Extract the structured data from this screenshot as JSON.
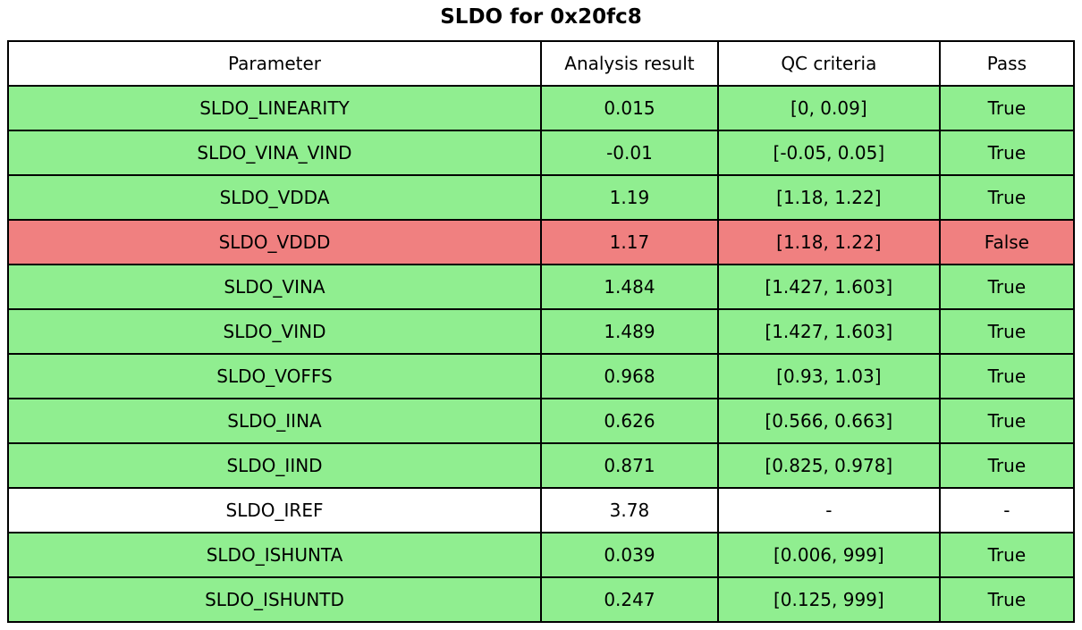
{
  "title": "SLDO for 0x20fc8",
  "colors": {
    "pass": "#90ee90",
    "fail": "#f08080",
    "none": "#ffffff",
    "border": "#000000",
    "text": "#000000"
  },
  "table": {
    "headers": [
      "Parameter",
      "Analysis result",
      "QC criteria",
      "Pass"
    ],
    "rows": [
      {
        "parameter": "SLDO_LINEARITY",
        "result": "0.015",
        "criteria": "[0, 0.09]",
        "pass": "True",
        "status": "pass"
      },
      {
        "parameter": "SLDO_VINA_VIND",
        "result": "-0.01",
        "criteria": "[-0.05, 0.05]",
        "pass": "True",
        "status": "pass"
      },
      {
        "parameter": "SLDO_VDDA",
        "result": "1.19",
        "criteria": "[1.18, 1.22]",
        "pass": "True",
        "status": "pass"
      },
      {
        "parameter": "SLDO_VDDD",
        "result": "1.17",
        "criteria": "[1.18, 1.22]",
        "pass": "False",
        "status": "fail"
      },
      {
        "parameter": "SLDO_VINA",
        "result": "1.484",
        "criteria": "[1.427, 1.603]",
        "pass": "True",
        "status": "pass"
      },
      {
        "parameter": "SLDO_VIND",
        "result": "1.489",
        "criteria": "[1.427, 1.603]",
        "pass": "True",
        "status": "pass"
      },
      {
        "parameter": "SLDO_VOFFS",
        "result": "0.968",
        "criteria": "[0.93, 1.03]",
        "pass": "True",
        "status": "pass"
      },
      {
        "parameter": "SLDO_IINA",
        "result": "0.626",
        "criteria": "[0.566, 0.663]",
        "pass": "True",
        "status": "pass"
      },
      {
        "parameter": "SLDO_IIND",
        "result": "0.871",
        "criteria": "[0.825, 0.978]",
        "pass": "True",
        "status": "pass"
      },
      {
        "parameter": "SLDO_IREF",
        "result": "3.78",
        "criteria": "-",
        "pass": "-",
        "status": "none"
      },
      {
        "parameter": "SLDO_ISHUNTA",
        "result": "0.039",
        "criteria": "[0.006, 999]",
        "pass": "True",
        "status": "pass"
      },
      {
        "parameter": "SLDO_ISHUNTD",
        "result": "0.247",
        "criteria": "[0.125, 999]",
        "pass": "True",
        "status": "pass"
      }
    ]
  },
  "chart_data": {
    "type": "table",
    "title": "SLDO for 0x20fc8",
    "columns": [
      "Parameter",
      "Analysis result",
      "QC criteria",
      "Pass"
    ],
    "rows": [
      [
        "SLDO_LINEARITY",
        0.015,
        "[0, 0.09]",
        "True"
      ],
      [
        "SLDO_VINA_VIND",
        -0.01,
        "[-0.05, 0.05]",
        "True"
      ],
      [
        "SLDO_VDDA",
        1.19,
        "[1.18, 1.22]",
        "True"
      ],
      [
        "SLDO_VDDD",
        1.17,
        "[1.18, 1.22]",
        "False"
      ],
      [
        "SLDO_VINA",
        1.484,
        "[1.427, 1.603]",
        "True"
      ],
      [
        "SLDO_VIND",
        1.489,
        "[1.427, 1.603]",
        "True"
      ],
      [
        "SLDO_VOFFS",
        0.968,
        "[0.93, 1.03]",
        "True"
      ],
      [
        "SLDO_IINA",
        0.626,
        "[0.566, 0.663]",
        "True"
      ],
      [
        "SLDO_IIND",
        0.871,
        "[0.825, 0.978]",
        "True"
      ],
      [
        "SLDO_IREF",
        3.78,
        "-",
        "-"
      ],
      [
        "SLDO_ISHUNTA",
        0.039,
        "[0.006, 999]",
        "True"
      ],
      [
        "SLDO_ISHUNTD",
        0.247,
        "[0.125, 999]",
        "True"
      ]
    ],
    "row_colors": [
      "pass",
      "pass",
      "pass",
      "fail",
      "pass",
      "pass",
      "pass",
      "pass",
      "pass",
      "none",
      "pass",
      "pass"
    ],
    "legend": "row background green = pass (True), red = fail (False), white = no criteria"
  }
}
